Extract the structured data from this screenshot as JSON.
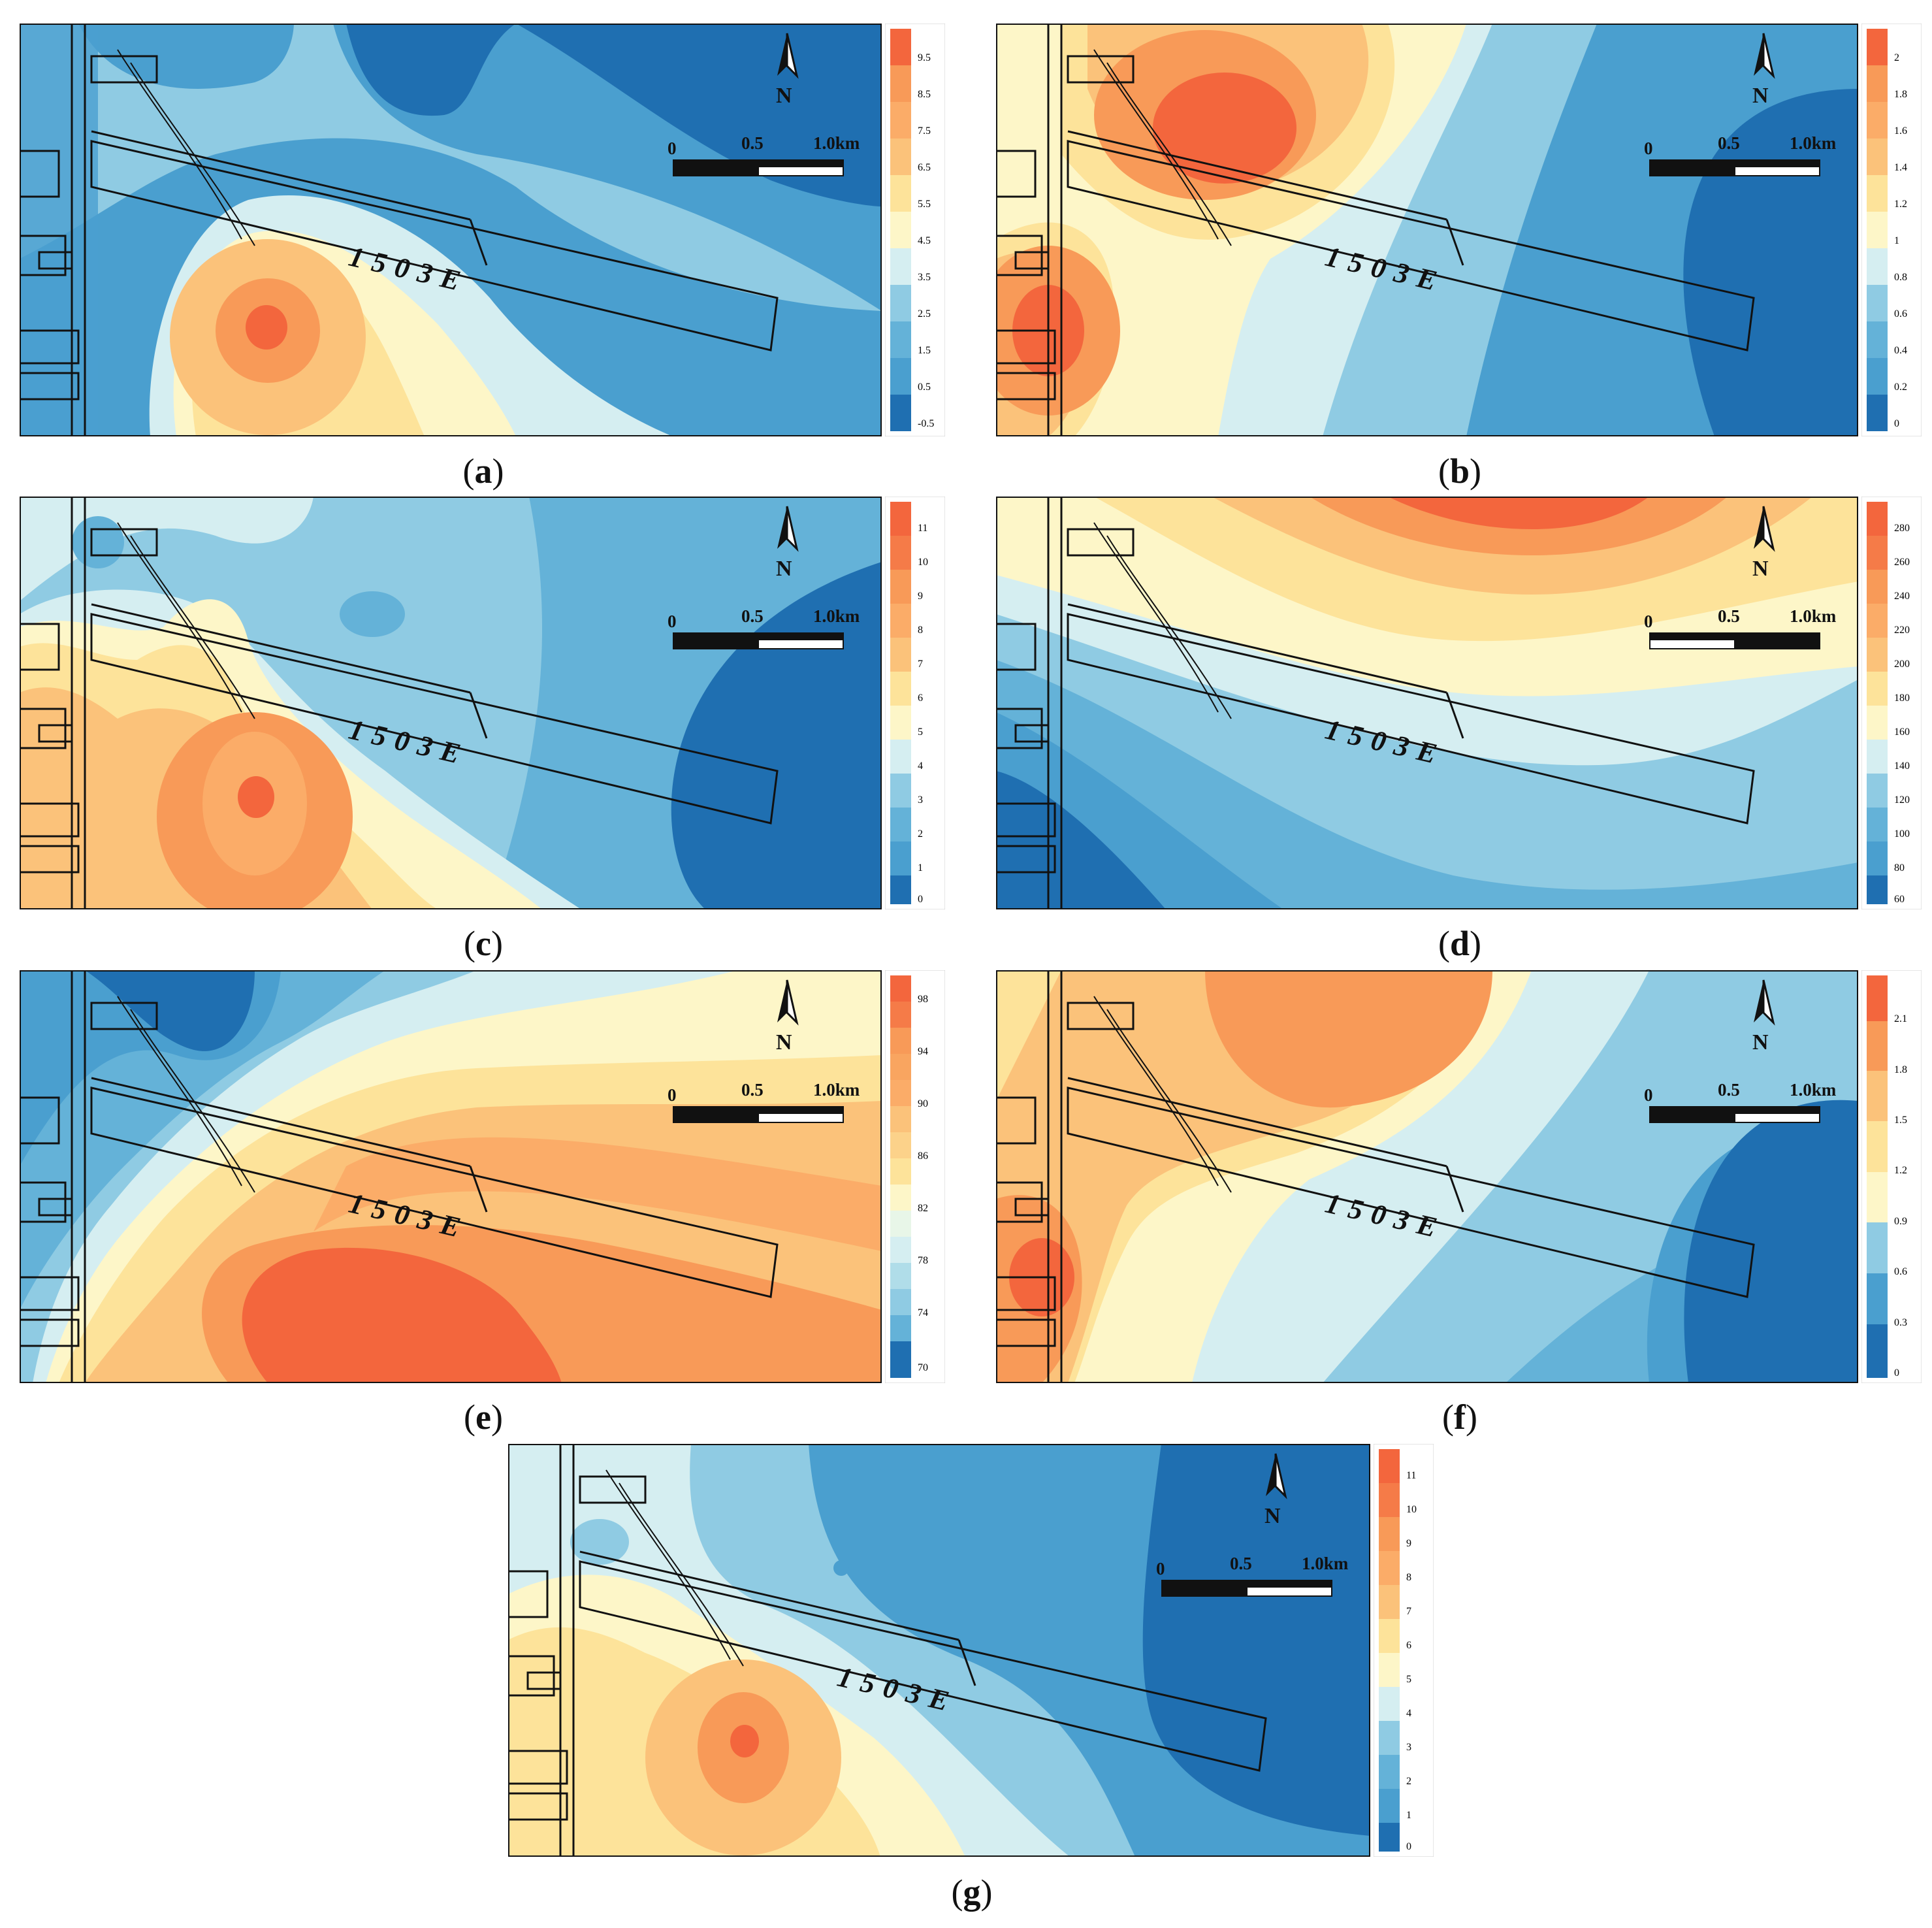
{
  "panels": [
    {
      "id": "a",
      "caption": "a",
      "face_label": "1503E",
      "north": "N",
      "scale": [
        "0",
        "0.5",
        "1.0km"
      ],
      "colorbar_ticks": [
        "9.5",
        "8.5",
        "7.5",
        "6.5",
        "5.5",
        "4.5",
        "3.5",
        "2.5",
        "1.5",
        "0.5",
        "-0.5"
      ]
    },
    {
      "id": "b",
      "caption": "b",
      "face_label": "1503E",
      "north": "N",
      "scale": [
        "0",
        "0.5",
        "1.0km"
      ],
      "colorbar_ticks": [
        "2",
        "1.8",
        "1.6",
        "1.4",
        "1.2",
        "1",
        "0.8",
        "0.6",
        "0.4",
        "0.2",
        "0"
      ]
    },
    {
      "id": "c",
      "caption": "c",
      "face_label": "1503E",
      "north": "N",
      "scale": [
        "0",
        "0.5",
        "1.0km"
      ],
      "colorbar_ticks": [
        "11",
        "10",
        "9",
        "8",
        "7",
        "6",
        "5",
        "4",
        "3",
        "2",
        "1",
        "0"
      ]
    },
    {
      "id": "d",
      "caption": "d",
      "face_label": "1503E",
      "north": "N",
      "scale": [
        "0",
        "0.5",
        "1.0km"
      ],
      "colorbar_ticks": [
        "280",
        "260",
        "240",
        "220",
        "200",
        "180",
        "160",
        "140",
        "120",
        "100",
        "80",
        "60"
      ]
    },
    {
      "id": "e",
      "caption": "e",
      "face_label": "1503E",
      "north": "N",
      "scale": [
        "0",
        "0.5",
        "1.0km"
      ],
      "colorbar_ticks": [
        "98",
        "94",
        "90",
        "86",
        "82",
        "78",
        "74",
        "70"
      ]
    },
    {
      "id": "f",
      "caption": "f",
      "face_label": "1503E",
      "north": "N",
      "scale": [
        "0",
        "0.5",
        "1.0km"
      ],
      "colorbar_ticks": [
        "2.1",
        "1.8",
        "1.5",
        "1.2",
        "0.9",
        "0.6",
        "0.3",
        "0"
      ]
    },
    {
      "id": "g",
      "caption": "g",
      "face_label": "1503E",
      "north": "N",
      "scale": [
        "0",
        "0.5",
        "1.0km"
      ],
      "colorbar_ticks": [
        "11",
        "10",
        "9",
        "8",
        "7",
        "6",
        "5",
        "4",
        "3",
        "2",
        "1",
        "0"
      ]
    }
  ],
  "colors": {
    "deep_blue": "#1f6fb1",
    "mid_blue": "#4a9fcf",
    "light_blue": "#8fcbe3",
    "pale_blue": "#d5eef1",
    "pale_yellow": "#fdf6c8",
    "yellow": "#fde39a",
    "light_orange": "#fbc27a",
    "orange": "#f89a58",
    "red_orange": "#f3663d"
  }
}
